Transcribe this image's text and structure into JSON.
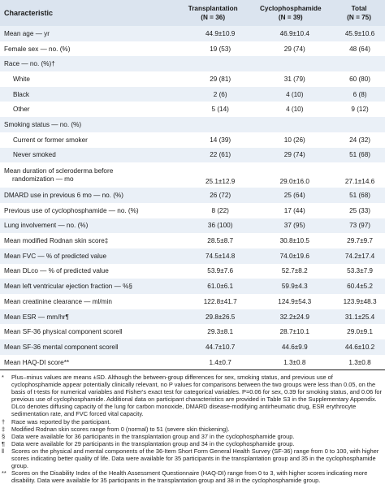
{
  "table": {
    "headers": {
      "characteristic": "Characteristic",
      "col1_name": "Transplantation",
      "col1_n": "(N = 36)",
      "col2_name": "Cyclophosphamide",
      "col2_n": "(N = 39)",
      "col3_name": "Total",
      "col3_n": "(N = 75)"
    },
    "rows": [
      {
        "label": "Mean age — yr",
        "t": "44.9±10.9",
        "c": "46.9±10.4",
        "total": "45.9±10.6"
      },
      {
        "label": "Female sex — no. (%)",
        "t": "19 (53)",
        "c": "29 (74)",
        "total": "48 (64)"
      },
      {
        "label": "Race — no. (%)†",
        "t": "",
        "c": "",
        "total": ""
      },
      {
        "label": "White",
        "t": "29 (81)",
        "c": "31 (79)",
        "total": "60 (80)"
      },
      {
        "label": "Black",
        "t": "2 (6)",
        "c": "4 (10)",
        "total": "6 (8)"
      },
      {
        "label": "Other",
        "t": "5 (14)",
        "c": "4 (10)",
        "total": "9 (12)"
      },
      {
        "label": "Smoking status — no. (%)",
        "t": "",
        "c": "",
        "total": ""
      },
      {
        "label": "Current or former smoker",
        "t": "14 (39)",
        "c": "10 (26)",
        "total": "24 (32)"
      },
      {
        "label": "Never smoked",
        "t": "22 (61)",
        "c": "29 (74)",
        "total": "51 (68)"
      },
      {
        "label": "Mean duration of scleroderma before",
        "label2": "randomization — mo",
        "t": "25.1±12.9",
        "c": "29.0±16.0",
        "total": "27.1±14.6"
      },
      {
        "label": "DMARD use in previous 6 mo — no. (%)",
        "t": "26 (72)",
        "c": "25 (64)",
        "total": "51 (68)"
      },
      {
        "label": "Previous use of cyclophosphamide — no. (%)",
        "t": "8 (22)",
        "c": "17 (44)",
        "total": "25 (33)"
      },
      {
        "label": "Lung involvement — no. (%)",
        "t": "36 (100)",
        "c": "37 (95)",
        "total": "73 (97)"
      },
      {
        "label": "Mean modified Rodnan skin score‡",
        "t": "28.5±8.7",
        "c": "30.8±10.5",
        "total": "29.7±9.7"
      },
      {
        "label": "Mean FVC — % of predicted value",
        "t": "74.5±14.8",
        "c": "74.0±19.6",
        "total": "74.2±17.4"
      },
      {
        "label": "Mean DLco — % of predicted value",
        "t": "53.9±7.6",
        "c": "52.7±8.2",
        "total": "53.3±7.9"
      },
      {
        "label": "Mean left ventricular ejection fraction — %§",
        "t": "61.0±6.1",
        "c": "59.9±4.3",
        "total": "60.4±5.2"
      },
      {
        "label": "Mean creatinine clearance — ml/min",
        "t": "122.8±41.7",
        "c": "124.9±54.3",
        "total": "123.9±48.3"
      },
      {
        "label": "Mean ESR — mm/hr¶",
        "t": "29.8±26.5",
        "c": "32.2±24.9",
        "total": "31.1±25.4"
      },
      {
        "label": "Mean SF-36 physical component score‖",
        "t": "29.3±8.1",
        "c": "28.7±10.1",
        "total": "29.0±9.1"
      },
      {
        "label": "Mean SF-36 mental component score‖",
        "t": "44.7±10.7",
        "c": "44.6±9.9",
        "total": "44.6±10.2"
      },
      {
        "label": "Mean HAQ-DI score**",
        "t": "1.4±0.7",
        "c": "1.3±0.8",
        "total": "1.3±0.8"
      }
    ]
  },
  "footnotes": [
    {
      "mark": "*",
      "text": "Plus–minus values are means ±SD. Although the between-group differences for sex, smoking status, and previous use of cyclophosphamide appear potentially clinically relevant, no P values for comparisons between the two groups were less than 0.05, on the basis of t-tests for numerical variables and Fisher's exact test for categorical variables. P=0.06 for sex, 0.39 for smoking status, and 0.06 for previous use of cyclophosphamide. Additional data on participant characteristics are provided in Table S3 in the Supplementary Appendix. DLco denotes diffusing capacity of the lung for carbon monoxide, DMARD disease-modifying antirheumatic drug, ESR erythrocyte sedimentation rate, and FVC forced vital capacity."
    },
    {
      "mark": "†",
      "text": "Race was reported by the participant."
    },
    {
      "mark": "‡",
      "text": "Modified Rodnan skin scores range from 0 (normal) to 51 (severe skin thickening)."
    },
    {
      "mark": "§",
      "text": "Data were available for 36 participants in the transplantation group and 37 in the cyclophosphamide group."
    },
    {
      "mark": "¶",
      "text": "Data were available for 29 participants in the transplantation group and 34 in the cyclophosphamide group."
    },
    {
      "mark": "‖",
      "text": "Scores on the physical and mental components of the 36-Item Short Form General Health Survey (SF-36) range from 0 to 100, with higher scores indicating better quality of life. Data were available for 35 participants in the transplantation group and 35 in the cyclophosphamide group."
    },
    {
      "mark": "**",
      "text": "Scores on the Disability Index of the Health Assessment Questionnaire (HAQ-DI) range from 0 to 3, with higher scores indicating more disability. Data were available for 35 participants in the transplantation group and 38 in the cyclophosphamide group."
    }
  ]
}
